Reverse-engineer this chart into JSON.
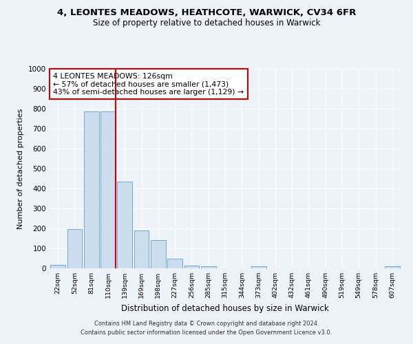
{
  "title": "4, LEONTES MEADOWS, HEATHCOTE, WARWICK, CV34 6FR",
  "subtitle": "Size of property relative to detached houses in Warwick",
  "xlabel": "Distribution of detached houses by size in Warwick",
  "ylabel": "Number of detached properties",
  "bar_labels": [
    "22sqm",
    "52sqm",
    "81sqm",
    "110sqm",
    "139sqm",
    "169sqm",
    "198sqm",
    "227sqm",
    "256sqm",
    "285sqm",
    "315sqm",
    "344sqm",
    "373sqm",
    "402sqm",
    "432sqm",
    "461sqm",
    "490sqm",
    "519sqm",
    "549sqm",
    "578sqm",
    "607sqm"
  ],
  "bar_values": [
    18,
    195,
    785,
    785,
    435,
    190,
    140,
    50,
    15,
    10,
    0,
    0,
    10,
    0,
    0,
    0,
    0,
    0,
    0,
    0,
    10
  ],
  "bar_color": "#ccddf0",
  "bar_edgecolor": "#6aaad4",
  "vline_color": "#cc0000",
  "annotation_title": "4 LEONTES MEADOWS: 126sqm",
  "annotation_line1": "← 57% of detached houses are smaller (1,473)",
  "annotation_line2": "43% of semi-detached houses are larger (1,129) →",
  "annotation_box_facecolor": "#ffffff",
  "annotation_box_edgecolor": "#cc0000",
  "footer_line1": "Contains HM Land Registry data © Crown copyright and database right 2024.",
  "footer_line2": "Contains public sector information licensed under the Open Government Licence v3.0.",
  "bg_color": "#eef2f9",
  "grid_color": "#ffffff",
  "ylim": [
    0,
    1000
  ],
  "yticks": [
    0,
    100,
    200,
    300,
    400,
    500,
    600,
    700,
    800,
    900,
    1000
  ]
}
